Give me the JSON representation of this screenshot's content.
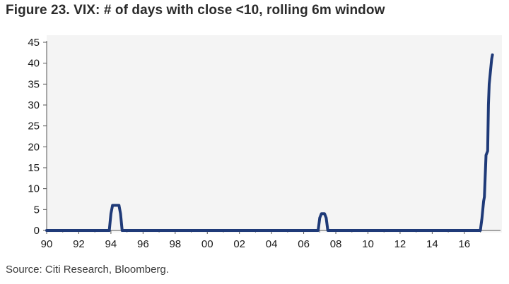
{
  "title": "Figure 23. VIX: # of days with close <10, rolling 6m window",
  "source": "Source: Citi Research, Bloomberg.",
  "chart_data": {
    "type": "line",
    "title": "Figure 23. VIX: # of days with close <10, rolling 6m window",
    "xlabel": "",
    "ylabel": "",
    "x_ticks": [
      "90",
      "92",
      "94",
      "96",
      "98",
      "00",
      "02",
      "04",
      "06",
      "08",
      "10",
      "12",
      "14",
      "16"
    ],
    "y_ticks": [
      0,
      5,
      10,
      15,
      20,
      25,
      30,
      35,
      40,
      45
    ],
    "xlim": [
      1990,
      2018
    ],
    "ylim": [
      0,
      45
    ],
    "grid": false,
    "legend": "none",
    "series": [
      {
        "color": "#1f3a78",
        "x": [
          1990.0,
          1993.9,
          1994.0,
          1994.1,
          1994.5,
          1994.6,
          1994.7,
          2006.9,
          2007.0,
          2007.1,
          2007.3,
          2007.4,
          2007.5,
          2017.0,
          2017.1,
          2017.2,
          2017.25,
          2017.35,
          2017.45,
          2017.5,
          2017.55,
          2017.7,
          2017.75
        ],
        "y": [
          0,
          0,
          4,
          6,
          6,
          4,
          0,
          0,
          3,
          4,
          4,
          3,
          0,
          0,
          3,
          7,
          8,
          18,
          19,
          30,
          35,
          41,
          42
        ]
      }
    ]
  }
}
